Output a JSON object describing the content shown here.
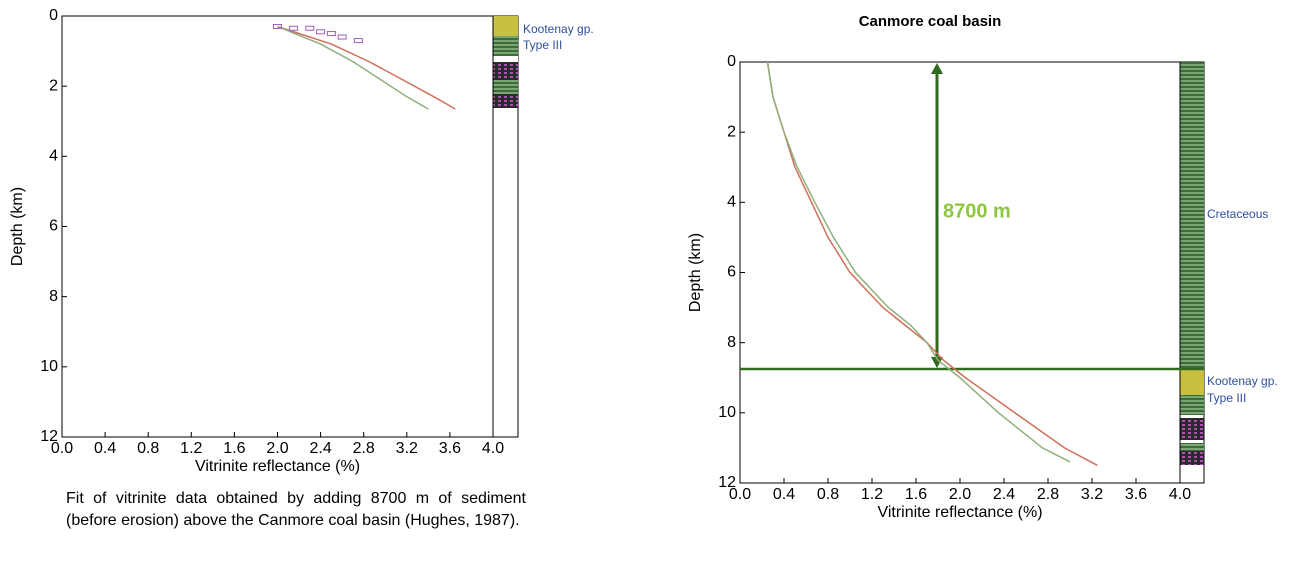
{
  "chart_data": [
    {
      "type": "line",
      "x_label": "Vitrinite reflectance (%)",
      "y_label": "Depth (km)",
      "y_inverted": true,
      "xlim": [
        0,
        4.0
      ],
      "ylim": [
        0,
        12
      ],
      "xticks": [
        {
          "value": 0,
          "label": "0.0"
        },
        {
          "value": 0.4,
          "label": "0.4"
        },
        {
          "value": 0.8,
          "label": "0.8"
        },
        {
          "value": 1.2,
          "label": "1.2"
        },
        {
          "value": 1.6,
          "label": "1.6"
        },
        {
          "value": 2.0,
          "label": "2.0"
        },
        {
          "value": 2.4,
          "label": "2.4"
        },
        {
          "value": 2.8,
          "label": "2.8"
        },
        {
          "value": 3.2,
          "label": "3.2"
        },
        {
          "value": 3.6,
          "label": "3.6"
        },
        {
          "value": 4.0,
          "label": "4.0"
        }
      ],
      "yticks": [
        0,
        2,
        4,
        6,
        8,
        10,
        12
      ],
      "annotations": [
        "Kootenay gp.",
        "Type III"
      ],
      "series": [
        {
          "kind": "line",
          "color": "#d0705a",
          "x": [
            2.0,
            2.5,
            2.85,
            3.15,
            3.45,
            3.65
          ],
          "values": [
            0.3,
            0.8,
            1.3,
            1.8,
            2.3,
            2.65
          ]
        },
        {
          "kind": "line",
          "color": "#8fb07a",
          "x": [
            2.0,
            2.4,
            2.7,
            2.95,
            3.2,
            3.4
          ],
          "values": [
            0.3,
            0.8,
            1.3,
            1.8,
            2.3,
            2.65
          ]
        },
        {
          "kind": "scatter",
          "color": "#9b5fb5",
          "x": [
            2.0,
            2.15,
            2.3,
            2.4,
            2.5,
            2.6,
            2.75
          ],
          "values": [
            0.3,
            0.35,
            0.35,
            0.45,
            0.5,
            0.6,
            0.7
          ]
        }
      ]
    },
    {
      "type": "line",
      "title": "Canmore coal basin",
      "x_label": "Vitrinite reflectance (%)",
      "y_label": "Depth (km)",
      "y_inverted": true,
      "xlim": [
        0,
        4.0
      ],
      "ylim": [
        0,
        12
      ],
      "xticks": [
        {
          "value": 0,
          "label": "0.0"
        },
        {
          "value": 0.4,
          "label": "0.4"
        },
        {
          "value": 0.8,
          "label": "0.8"
        },
        {
          "value": 1.2,
          "label": "1.2"
        },
        {
          "value": 1.6,
          "label": "1.6"
        },
        {
          "value": 2.0,
          "label": "2.0"
        },
        {
          "value": 2.4,
          "label": "2.4"
        },
        {
          "value": 2.8,
          "label": "2.8"
        },
        {
          "value": 3.2,
          "label": "3.2"
        },
        {
          "value": 3.6,
          "label": "3.6"
        },
        {
          "value": 4.0,
          "label": "4.0"
        }
      ],
      "yticks": [
        0,
        2,
        4,
        6,
        8,
        10,
        12
      ],
      "annotations": [
        "Cretaceous",
        "Kootenay gp.",
        "Type III"
      ],
      "marker_label": "8700 m",
      "marker_depth": 8.75,
      "series": [
        {
          "kind": "line",
          "color": "#d0705a",
          "x": [
            0.25,
            0.3,
            0.4,
            0.5,
            0.65,
            0.8,
            1.0,
            1.3,
            1.5,
            1.7,
            1.85,
            2.05,
            2.5,
            2.95,
            3.25
          ],
          "values": [
            0,
            1,
            2,
            3,
            4,
            5,
            6,
            7,
            7.5,
            8,
            8.5,
            9,
            10,
            11,
            11.5
          ]
        },
        {
          "kind": "line",
          "color": "#8fb07a",
          "x": [
            0.25,
            0.3,
            0.4,
            0.52,
            0.68,
            0.85,
            1.05,
            1.35,
            1.55,
            1.7,
            1.8,
            2.0,
            2.35,
            2.75,
            3.0
          ],
          "values": [
            0,
            1,
            2,
            3,
            4,
            5,
            6,
            7,
            7.5,
            8,
            8.5,
            9,
            10,
            11,
            11.4
          ]
        }
      ]
    }
  ],
  "caption": "Fit of vitrinite data obtained by adding 8700 m of sediment (before erosion) above the Canmore coal basin (Hughes, 1987)."
}
